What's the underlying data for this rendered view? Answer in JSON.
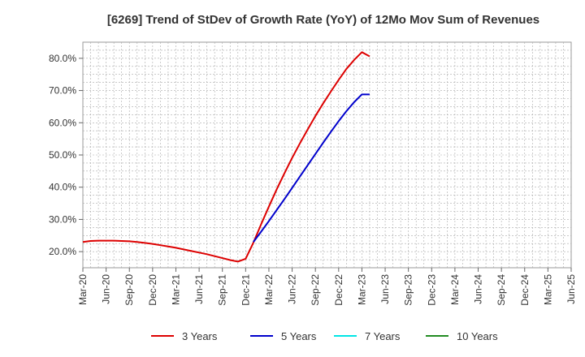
{
  "chart_data": {
    "type": "line",
    "title": "[6269]  Trend of StDev of Growth Rate (YoY) of 12Mo Mov Sum of Revenues",
    "xlabel": "",
    "ylabel": "",
    "ylim": [
      15,
      85
    ],
    "y_ticks": [
      20,
      30,
      40,
      50,
      60,
      70,
      80
    ],
    "y_tick_labels": [
      "20.0%",
      "30.0%",
      "40.0%",
      "50.0%",
      "60.0%",
      "70.0%",
      "80.0%"
    ],
    "x_tick_labels": [
      "Mar-20",
      "Jun-20",
      "Sep-20",
      "Dec-20",
      "Mar-21",
      "Jun-21",
      "Sep-21",
      "Dec-21",
      "Mar-22",
      "Jun-22",
      "Sep-22",
      "Dec-22",
      "Mar-23",
      "Jun-23",
      "Sep-23",
      "Dec-23",
      "Mar-24",
      "Jun-24",
      "Sep-24",
      "Dec-24",
      "Mar-25",
      "Jun-25"
    ],
    "grid": true,
    "legend_position": "bottom",
    "series": [
      {
        "name": "3 Years",
        "color": "#dd0000",
        "start_month_index": 0,
        "values": [
          23.0,
          23.3,
          23.4,
          23.4,
          23.4,
          23.3,
          23.2,
          23.0,
          22.7,
          22.4,
          22.0,
          21.6,
          21.2,
          20.7,
          20.2,
          19.7,
          19.2,
          18.6,
          18.0,
          17.4,
          16.9,
          17.8,
          22.8,
          28.5,
          34.0,
          39.3,
          44.3,
          49.1,
          53.6,
          57.9,
          62.1,
          66.0,
          69.7,
          73.3,
          76.7,
          79.5,
          81.9,
          80.6
        ]
      },
      {
        "name": "5 Years",
        "color": "#0000cc",
        "start_month_index": 22,
        "values": [
          23.0,
          26.2,
          29.5,
          32.9,
          36.3,
          39.8,
          43.3,
          46.8,
          50.3,
          53.8,
          57.2,
          60.5,
          63.6,
          66.4,
          68.8,
          68.8
        ]
      },
      {
        "name": "7 Years",
        "color": "#00e5e5",
        "start_month_index": 0,
        "values": []
      },
      {
        "name": "10 Years",
        "color": "#228b22",
        "start_month_index": 0,
        "values": []
      }
    ]
  }
}
